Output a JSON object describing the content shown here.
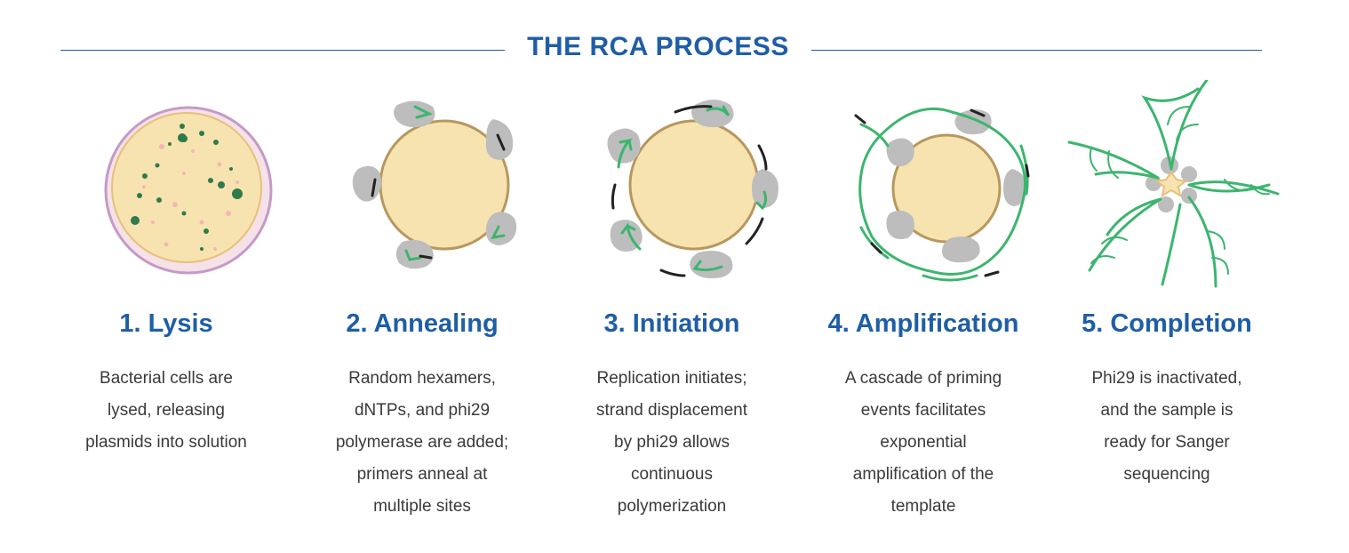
{
  "header": {
    "title": "THE RCA PROCESS"
  },
  "steps": [
    {
      "title": "1. Lysis",
      "lines": [
        "Bacterial cells are",
        "lysed, releasing",
        "plasmids into solution"
      ]
    },
    {
      "title": "2. Annealing",
      "lines": [
        "Random hexamers,",
        "dNTPs, and phi29",
        "polymerase are added;",
        "primers anneal at",
        "multiple sites"
      ]
    },
    {
      "title": "3. Initiation",
      "lines": [
        "Replication initiates;",
        "strand displacement",
        "by phi29 allows",
        "continuous",
        "polymerization"
      ]
    },
    {
      "title": "4. Amplification",
      "lines": [
        "A cascade of priming",
        "events facilitates",
        "exponential",
        "amplification of the",
        "template"
      ]
    },
    {
      "title": "5. Completion",
      "lines": [
        "Phi29 is inactivated,",
        "and the sample is",
        "ready for Sanger",
        "sequencing"
      ]
    }
  ],
  "colors": {
    "title_blue": "#1f5ea6",
    "plasmid_fill": "#f7e3b0",
    "plasmid_stroke": "#b8975e",
    "polymerase_gray": "#bdbdbd",
    "strand_green": "#3cb56e",
    "primer_black": "#222222"
  }
}
